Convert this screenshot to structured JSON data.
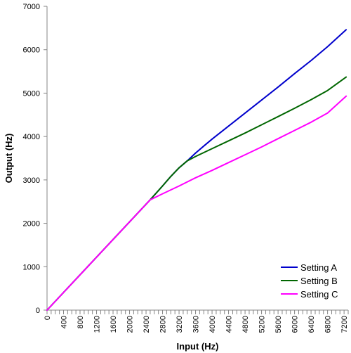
{
  "chart_data": {
    "type": "line",
    "title": "",
    "xlabel": "Input (Hz)",
    "ylabel": "Output (Hz)",
    "xlim": [
      0,
      7300
    ],
    "ylim": [
      0,
      7000
    ],
    "x_ticks": [
      0,
      400,
      800,
      1200,
      1600,
      2000,
      2400,
      2800,
      3200,
      3600,
      4000,
      4400,
      4800,
      5200,
      5600,
      6000,
      6400,
      6800,
      7200
    ],
    "y_ticks": [
      0,
      1000,
      2000,
      3000,
      4000,
      5000,
      6000,
      7000
    ],
    "grid": false,
    "legend_position": "bottom-right",
    "series": [
      {
        "name": "Setting A",
        "color": "#0000cc",
        "x": [
          0,
          2500,
          2800,
          3000,
          3200,
          3400,
          3600,
          3800,
          4000,
          4400,
          4800,
          5200,
          5600,
          6000,
          6400,
          6800,
          7250
        ],
        "y": [
          0,
          2540,
          2860,
          3080,
          3280,
          3440,
          3620,
          3780,
          3940,
          4240,
          4540,
          4840,
          5140,
          5450,
          5750,
          6070,
          6460
        ]
      },
      {
        "name": "Setting B",
        "color": "#006600",
        "x": [
          0,
          2500,
          2800,
          3000,
          3200,
          3400,
          3600,
          4000,
          4400,
          4800,
          5200,
          5600,
          6000,
          6400,
          6800,
          7250
        ],
        "y": [
          0,
          2540,
          2860,
          3080,
          3280,
          3440,
          3540,
          3720,
          3900,
          4080,
          4270,
          4460,
          4650,
          4850,
          5060,
          5370
        ]
      },
      {
        "name": "Setting C",
        "color": "#ff00ff",
        "x": [
          0,
          2500,
          2800,
          3200,
          3600,
          4000,
          4400,
          4800,
          5200,
          5600,
          6000,
          6400,
          6800,
          7250
        ],
        "y": [
          0,
          2540,
          2680,
          2860,
          3050,
          3220,
          3400,
          3580,
          3760,
          3950,
          4140,
          4330,
          4540,
          4930
        ]
      }
    ]
  }
}
